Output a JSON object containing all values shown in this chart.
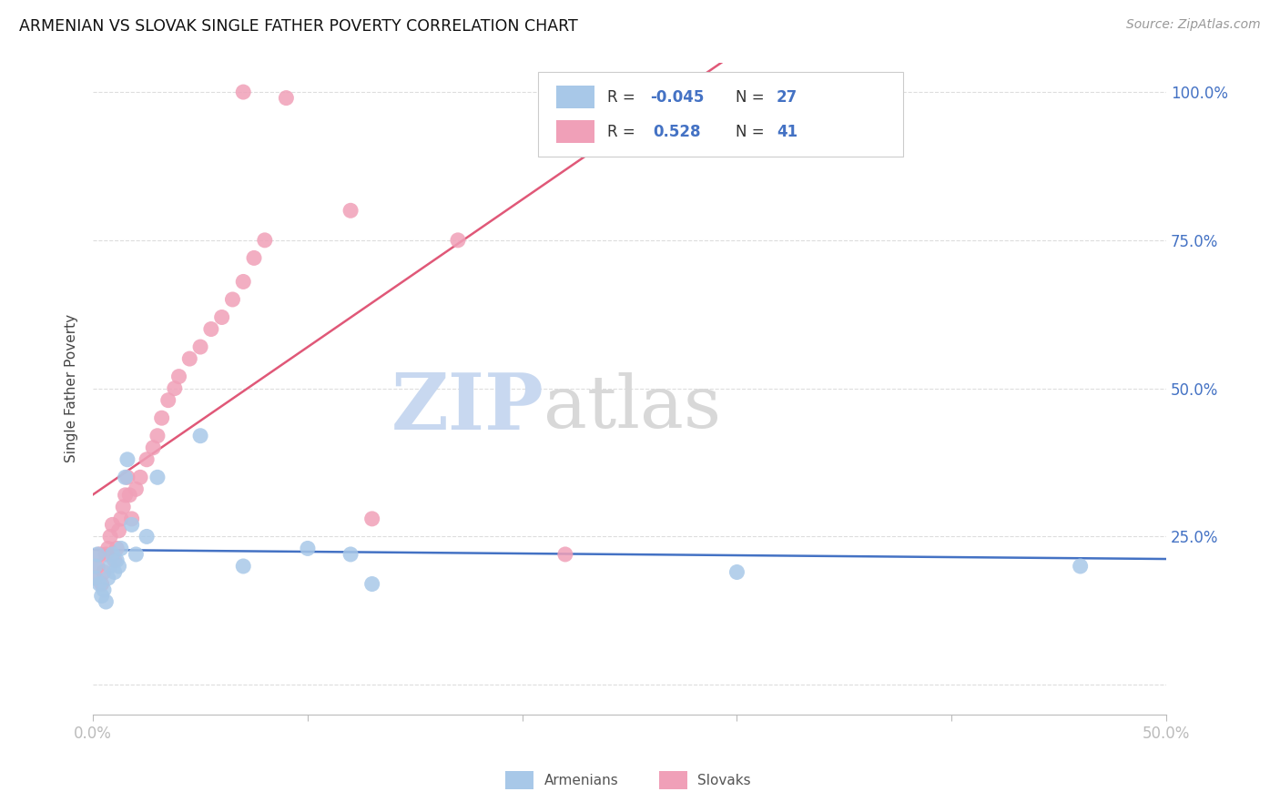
{
  "title": "ARMENIAN VS SLOVAK SINGLE FATHER POVERTY CORRELATION CHART",
  "source": "Source: ZipAtlas.com",
  "ylabel": "Single Father Poverty",
  "armenian_R": -0.045,
  "armenian_N": 27,
  "slovak_R": 0.528,
  "slovak_N": 41,
  "armenian_color": "#a8c8e8",
  "slovak_color": "#f0a0b8",
  "armenian_line_color": "#4472c4",
  "slovak_line_color": "#e05878",
  "r_text_color": "#4472c4",
  "watermark_zip_color": "#c8d8f0",
  "watermark_atlas_color": "#c8c8c8",
  "grid_color": "#dddddd",
  "spine_color": "#bbbbbb",
  "xlim": [
    0.0,
    0.5
  ],
  "ylim": [
    -0.05,
    1.05
  ],
  "yticks": [
    0.0,
    0.25,
    0.5,
    0.75,
    1.0
  ],
  "xticks": [
    0.0,
    0.1,
    0.2,
    0.3,
    0.4,
    0.5
  ],
  "armenian_x": [
    0.001,
    0.001,
    0.002,
    0.003,
    0.004,
    0.005,
    0.006,
    0.007,
    0.008,
    0.009,
    0.01,
    0.011,
    0.012,
    0.013,
    0.015,
    0.016,
    0.018,
    0.02,
    0.025,
    0.03,
    0.05,
    0.07,
    0.1,
    0.12,
    0.13,
    0.3,
    0.46
  ],
  "armenian_y": [
    0.2,
    0.18,
    0.22,
    0.17,
    0.15,
    0.16,
    0.14,
    0.18,
    0.2,
    0.22,
    0.19,
    0.21,
    0.2,
    0.23,
    0.35,
    0.38,
    0.27,
    0.22,
    0.25,
    0.35,
    0.42,
    0.2,
    0.23,
    0.22,
    0.17,
    0.19,
    0.2
  ],
  "slovak_x": [
    0.001,
    0.002,
    0.003,
    0.004,
    0.005,
    0.006,
    0.007,
    0.008,
    0.009,
    0.01,
    0.011,
    0.012,
    0.013,
    0.014,
    0.015,
    0.016,
    0.017,
    0.018,
    0.02,
    0.022,
    0.025,
    0.028,
    0.03,
    0.032,
    0.035,
    0.038,
    0.04,
    0.045,
    0.05,
    0.055,
    0.06,
    0.065,
    0.07,
    0.075,
    0.08,
    0.07,
    0.09,
    0.12,
    0.17,
    0.22,
    0.13
  ],
  "slovak_y": [
    0.18,
    0.2,
    0.22,
    0.17,
    0.19,
    0.22,
    0.23,
    0.25,
    0.27,
    0.21,
    0.23,
    0.26,
    0.28,
    0.3,
    0.32,
    0.35,
    0.32,
    0.28,
    0.33,
    0.35,
    0.38,
    0.4,
    0.42,
    0.45,
    0.48,
    0.5,
    0.52,
    0.55,
    0.57,
    0.6,
    0.62,
    0.65,
    0.68,
    0.72,
    0.75,
    1.0,
    0.99,
    0.8,
    0.75,
    0.22,
    0.28
  ]
}
